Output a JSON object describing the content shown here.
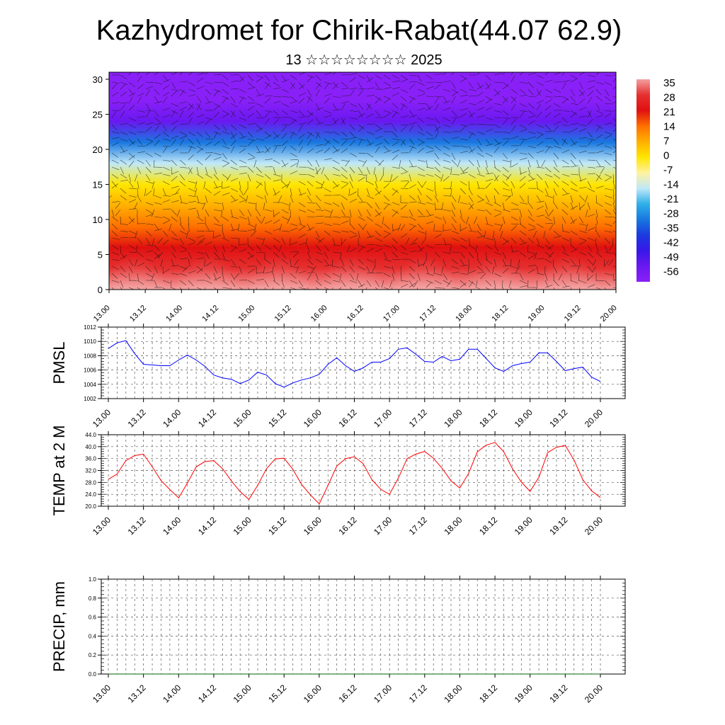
{
  "title": "Kazhydromet for Chirik-Rabat(44.07 62.9)",
  "subtitle": "13 ☆☆☆☆☆☆☆☆ 2025",
  "time_labels": [
    "13.00",
    "13.12",
    "14.00",
    "14.12",
    "15.00",
    "15.12",
    "16.00",
    "16.12",
    "17.00",
    "17.12",
    "18.00",
    "18.12",
    "19.00",
    "19.12",
    "20.00"
  ],
  "colorbar": {
    "labels": [
      "35",
      "28",
      "21",
      "14",
      "7",
      "0",
      "-7",
      "-14",
      "-21",
      "-28",
      "-35",
      "-42",
      "-49",
      "-56"
    ],
    "colors": [
      "#f4a0a0",
      "#e63030",
      "#e01010",
      "#ff7000",
      "#ffb000",
      "#ffe600",
      "#fff2a0",
      "#c0e8f8",
      "#30b0e8",
      "#1878e0",
      "#1a3ae0",
      "#3818e8",
      "#6a18f0",
      "#8a20f8"
    ]
  },
  "chart_data": [
    {
      "type": "heatmap",
      "name": "vertical-section",
      "x": [
        "13.00",
        "13.12",
        "14.00",
        "14.12",
        "15.00",
        "15.12",
        "16.00",
        "16.12",
        "17.00",
        "17.12",
        "18.00",
        "18.12",
        "19.00",
        "19.12",
        "20.00"
      ],
      "ylim": [
        0,
        31
      ],
      "yticks": [
        0,
        5,
        10,
        15,
        20,
        25,
        30
      ],
      "color_range": [
        -60,
        40
      ],
      "description_levels": {
        "y": [
          0,
          3,
          6,
          9,
          12,
          15,
          18,
          21,
          24,
          27,
          30
        ],
        "value": [
          33,
          28,
          22,
          16,
          8,
          -2,
          -14,
          -30,
          -48,
          -56,
          -60
        ]
      }
    },
    {
      "type": "line",
      "name": "PMSL",
      "ylabel": "PMSL",
      "ylim": [
        1002,
        1012
      ],
      "yticks": [
        1002,
        1004,
        1006,
        1008,
        1010,
        1012
      ],
      "x_start": 0,
      "x_step": 3,
      "values": [
        1009.0,
        1009.8,
        1010.1,
        1008.3,
        1006.8,
        1006.7,
        1006.6,
        1006.6,
        1007.4,
        1008.1,
        1007.4,
        1006.5,
        1005.3,
        1004.9,
        1004.7,
        1004.1,
        1004.6,
        1005.7,
        1005.3,
        1004.1,
        1003.6,
        1004.2,
        1004.6,
        1004.9,
        1005.4,
        1006.8,
        1007.7,
        1006.6,
        1005.8,
        1006.3,
        1007.1,
        1007.1,
        1007.6,
        1008.9,
        1009.1,
        1008.2,
        1007.2,
        1007.1,
        1007.9,
        1007.3,
        1007.5,
        1008.9,
        1008.9,
        1007.6,
        1006.3,
        1005.8,
        1006.6,
        1006.9,
        1007.1,
        1008.4,
        1008.4,
        1007.2,
        1005.9,
        1006.2,
        1006.4,
        1005.0,
        1004.4
      ]
    },
    {
      "type": "line",
      "name": "TEMP at 2 M",
      "ylabel": "TEMP at 2 M",
      "ylim": [
        20,
        44
      ],
      "yticks": [
        "20.0",
        "24.0",
        "28.0",
        "32.0",
        "36.0",
        "40.0",
        "44.0"
      ],
      "x_start": 0,
      "x_step": 3,
      "values": [
        29.0,
        30.8,
        35.3,
        37.0,
        37.5,
        33.2,
        28.6,
        25.6,
        22.8,
        27.8,
        33.2,
        35.0,
        35.3,
        32.6,
        28.5,
        24.9,
        22.3,
        27.0,
        32.6,
        35.9,
        36.1,
        32.4,
        27.3,
        23.8,
        20.8,
        27.0,
        33.5,
        36.0,
        36.6,
        34.3,
        28.9,
        25.7,
        24.0,
        29.4,
        36.0,
        37.5,
        38.4,
        36.1,
        32.7,
        28.5,
        26.1,
        31.0,
        38.3,
        40.5,
        41.4,
        38.3,
        32.6,
        28.1,
        25.0,
        29.7,
        38.0,
        39.8,
        40.4,
        35.5,
        28.9,
        25.2,
        22.9
      ]
    },
    {
      "type": "line",
      "name": "PRECIP, mm",
      "ylabel": "PRECIP, mm",
      "ylim": [
        0,
        1
      ],
      "yticks": [
        "0.0",
        "0.2",
        "0.4",
        "0.6",
        "0.8",
        "1.0"
      ],
      "x_start": 0,
      "x_step": 3,
      "values": [
        0,
        0,
        0,
        0,
        0,
        0,
        0,
        0,
        0,
        0,
        0,
        0,
        0,
        0,
        0,
        0,
        0,
        0,
        0,
        0,
        0,
        0,
        0,
        0,
        0,
        0,
        0,
        0,
        0,
        0,
        0,
        0,
        0,
        0,
        0,
        0,
        0,
        0,
        0,
        0,
        0,
        0,
        0,
        0,
        0,
        0,
        0,
        0,
        0,
        0,
        0,
        0,
        0,
        0,
        0,
        0,
        0
      ]
    }
  ]
}
